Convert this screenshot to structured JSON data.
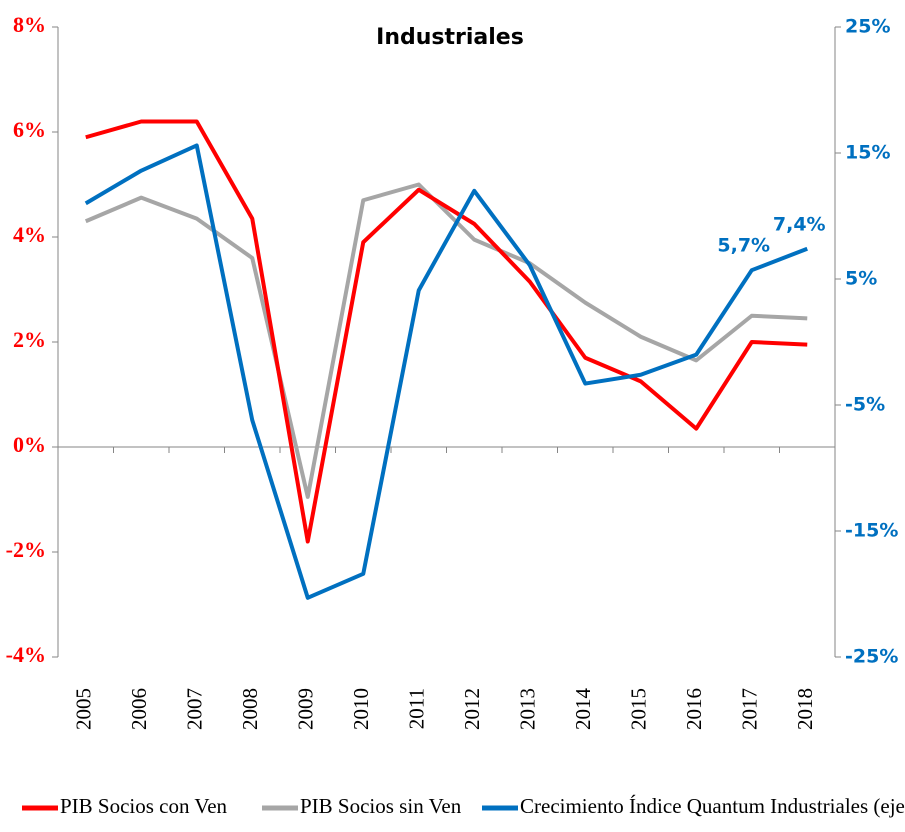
{
  "chart_data": {
    "type": "line",
    "title": "Industriales",
    "categories": [
      "2005",
      "2006",
      "2007",
      "2008",
      "2009",
      "2010",
      "2011",
      "2012",
      "2013",
      "2014",
      "2015",
      "2016",
      "2017",
      "2018"
    ],
    "series": [
      {
        "name": "PIB Socios con Ven",
        "color": "#ff0000",
        "values": [
          5.9,
          6.2,
          6.2,
          4.35,
          -1.8,
          3.9,
          4.9,
          4.25,
          3.15,
          1.7,
          1.25,
          0.35,
          2.0,
          1.95
        ]
      },
      {
        "name": "PIB Socios sin Ven",
        "color": "#a6a6a6",
        "values": [
          4.3,
          4.75,
          4.35,
          3.6,
          -0.95,
          4.7,
          5.0,
          3.95,
          3.5,
          2.75,
          2.1,
          1.65,
          2.5,
          2.45
        ]
      },
      {
        "name": "Crecimiento Índice Quantum Industriales (eje der)",
        "color": "#0070c0",
        "axis": "y2",
        "values": [
          11.0,
          13.6,
          15.6,
          -6.2,
          -20.3,
          -18.4,
          4.1,
          12.0,
          6.1,
          -3.3,
          -2.6,
          -1.0,
          5.7,
          7.4
        ],
        "value_labels": [
          null,
          null,
          null,
          null,
          null,
          null,
          null,
          null,
          null,
          null,
          null,
          null,
          "5,7%",
          "7,4%"
        ]
      }
    ],
    "ylim": [
      -4,
      8
    ],
    "yticks": [
      {
        "value": -4,
        "label": "-4%"
      },
      {
        "value": -2,
        "label": "-2%"
      },
      {
        "value": 0,
        "label": "0%"
      },
      {
        "value": 2,
        "label": "2%"
      },
      {
        "value": 4,
        "label": "4%"
      },
      {
        "value": 6,
        "label": "6%"
      },
      {
        "value": 8,
        "label": "8%"
      }
    ],
    "y2lim": [
      -25,
      25
    ],
    "y2ticks": [
      {
        "value": -25,
        "label": "-25%"
      },
      {
        "value": -15,
        "label": "-15%"
      },
      {
        "value": -5,
        "label": "-5%"
      },
      {
        "value": 5,
        "label": "5%"
      },
      {
        "value": 15,
        "label": "15%"
      },
      {
        "value": 25,
        "label": "25%"
      }
    ],
    "grid": false,
    "legend": "bottom"
  }
}
